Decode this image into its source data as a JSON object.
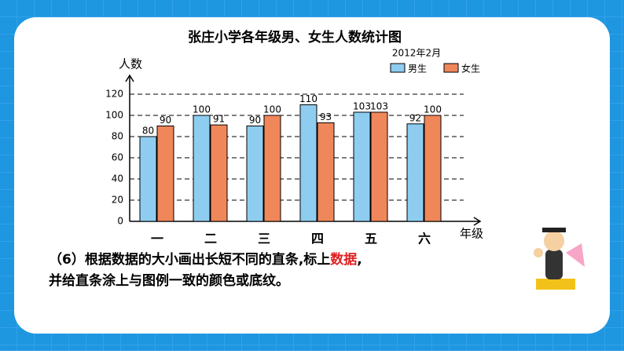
{
  "chart_data": {
    "type": "bar",
    "title": "张庄小学各年级男、女生人数统计图",
    "subtitle": "2012年2月",
    "y_label": "人数",
    "x_label": "年级",
    "categories": [
      "一",
      "二",
      "三",
      "四",
      "五",
      "六"
    ],
    "series": [
      {
        "name": "男生",
        "color": "#8ecdf0",
        "values": [
          80,
          100,
          90,
          110,
          103,
          92
        ]
      },
      {
        "name": "女生",
        "color": "#f0875a",
        "values": [
          90,
          91,
          100,
          93,
          103,
          100
        ]
      }
    ],
    "ylim": [
      0,
      120
    ],
    "yticks": [
      0,
      20,
      40,
      60,
      80,
      100,
      120
    ],
    "grid": true
  },
  "instruction": {
    "line1": [
      "（6）根据数据的大小画出长短不同的直条,标上",
      "数据",
      ","
    ],
    "line2": "并给直条涂上与图例一致的颜色或底纹。"
  }
}
